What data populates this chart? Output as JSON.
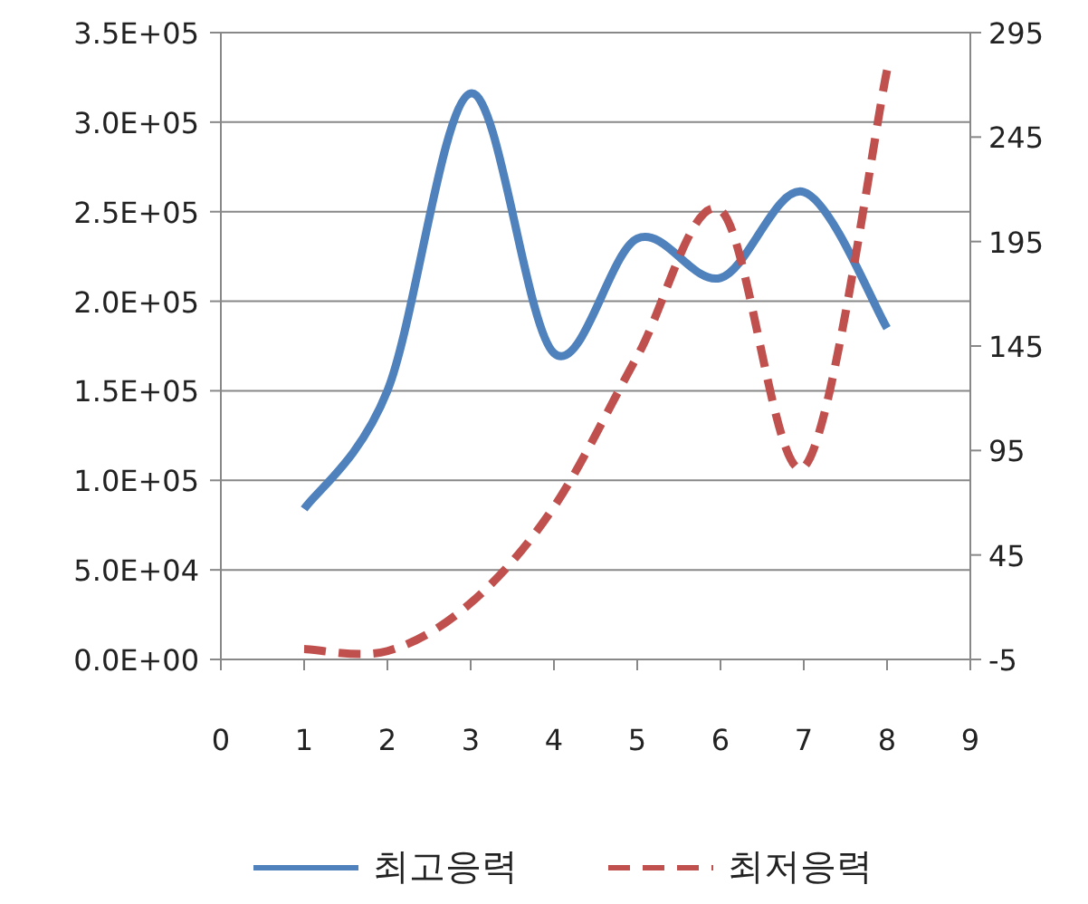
{
  "chart_data": {
    "type": "line",
    "x": [
      1,
      2,
      3,
      4,
      5,
      6,
      7,
      8
    ],
    "series": [
      {
        "name": "최고응력",
        "color": "#4f81bd",
        "line_style": "solid",
        "values": [
          84000,
          150000,
          316000,
          171000,
          235000,
          213000,
          261000,
          185000
        ]
      },
      {
        "name": "최저응력",
        "color": "#c0504d",
        "line_style": "dashed",
        "axis": "y2",
        "values": [
          0,
          -1,
          22,
          68,
          140,
          210,
          87,
          277
        ]
      }
    ],
    "xlim": [
      0,
      9
    ],
    "xticks": [
      0,
      1,
      2,
      3,
      4,
      5,
      6,
      7,
      8,
      9
    ],
    "ylim": [
      0,
      350000
    ],
    "yticks": [
      {
        "value": 0,
        "label": "0.0E+00"
      },
      {
        "value": 50000,
        "label": "5.0E+04"
      },
      {
        "value": 100000,
        "label": "1.0E+05"
      },
      {
        "value": 150000,
        "label": "1.5E+05"
      },
      {
        "value": 200000,
        "label": "2.0E+05"
      },
      {
        "value": 250000,
        "label": "2.5E+05"
      },
      {
        "value": 300000,
        "label": "3.0E+05"
      },
      {
        "value": 350000,
        "label": "3.5E+05"
      }
    ],
    "y2lim": [
      -5,
      295
    ],
    "y2ticks": [
      -5,
      45,
      95,
      145,
      195,
      245,
      295
    ],
    "grid": "y",
    "legend": "bottom"
  }
}
